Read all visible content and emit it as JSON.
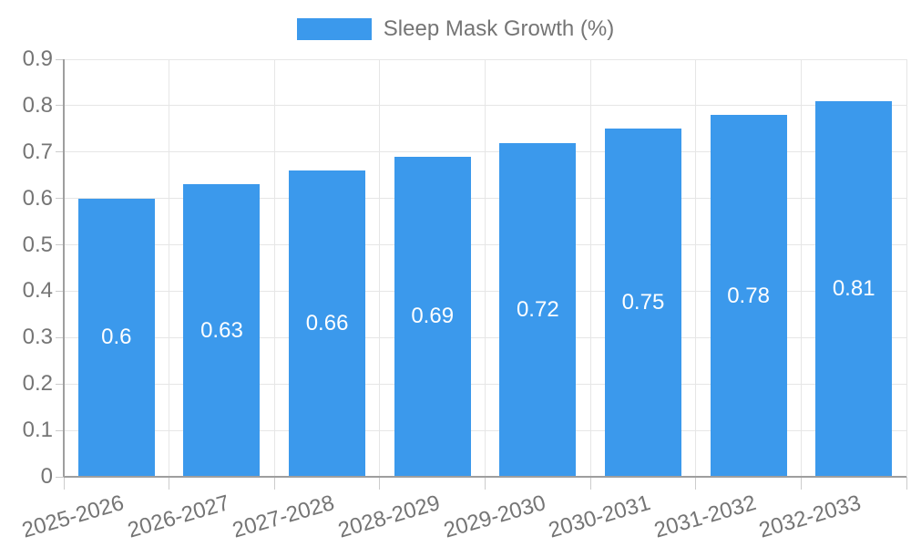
{
  "chart_data": {
    "type": "bar",
    "title": "Sleep Mask Growth (%)",
    "categories": [
      "2025-2026",
      "2026-2027",
      "2027-2028",
      "2028-2029",
      "2029-2030",
      "2030-2031",
      "2031-2032",
      "2032-2033"
    ],
    "series": [
      {
        "name": "Sleep Mask Growth (%)",
        "values": [
          0.6,
          0.63,
          0.66,
          0.69,
          0.72,
          0.75,
          0.78,
          0.81
        ]
      }
    ],
    "xlabel": "",
    "ylabel": "",
    "ylim": [
      0,
      0.9
    ],
    "ytick_step": 0.1,
    "ytick_labels": [
      "0",
      "0.1",
      "0.2",
      "0.3",
      "0.4",
      "0.5",
      "0.6",
      "0.7",
      "0.8",
      "0.9"
    ],
    "grid": true,
    "legend_position": "top-center",
    "bar_value_labels_inside": true,
    "x_label_rotation_deg": -16,
    "colors": {
      "bar": "#3b99ec",
      "bar_label": "#ffffff",
      "axis_text": "#757575",
      "axis_line": "#9e9e9e",
      "gridline": "#e6e6e6",
      "tick": "#cccccc",
      "background": "#ffffff"
    }
  }
}
